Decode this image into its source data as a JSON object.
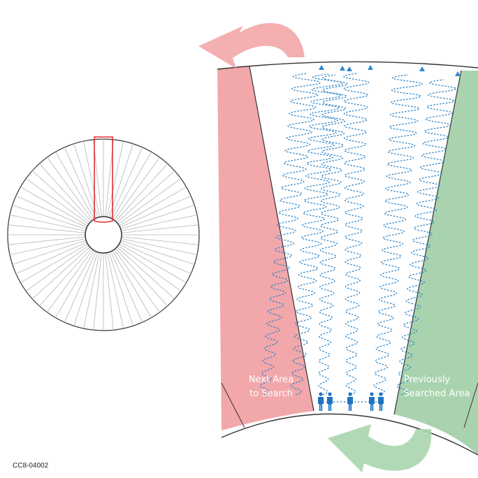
{
  "figure_code": "CC8-04002",
  "areas": {
    "next": {
      "label_line1": "Next Area",
      "label_line2": "to Search",
      "color": "#f2a7aa"
    },
    "previous": {
      "label_line1": "Previously",
      "label_line2": "Searched Area",
      "color": "#a9d3ae"
    }
  },
  "colors": {
    "search_path": "#2f86c9",
    "searchers": "#1f73bf",
    "locator_box": "#e03030",
    "arrow_top": "#f3a6a8",
    "arrow_bottom": "#a9d5ae",
    "outline": "#333333",
    "spokes": "#b5b5b5"
  },
  "icons": {
    "top_arrow": "curved-arrow-left-icon",
    "bottom_arrow": "curved-arrow-left-icon",
    "searcher": "person-icon",
    "path_start": "triangle-marker-icon"
  },
  "overview": {
    "spoke_count": 60
  },
  "search_team": {
    "searcher_count": 6,
    "path_count": 6
  }
}
